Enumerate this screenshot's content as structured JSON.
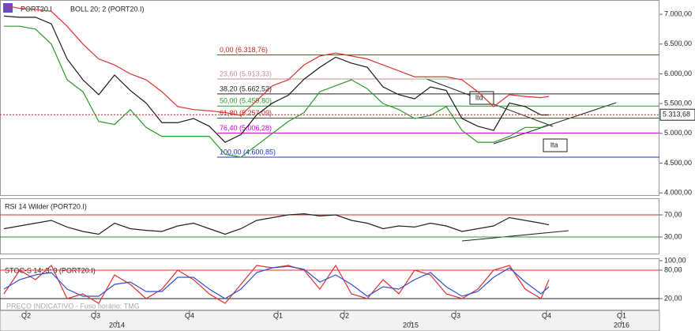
{
  "toolbar": {
    "symbol": "PORT20.I",
    "indicator": "BOLL 20; 2 (PORT20.I)"
  },
  "watermark": "PREÇO INDICATIVO - Fuso horário: TMG",
  "chart_data": [
    {
      "type": "line",
      "x": [
        1,
        5,
        9,
        13,
        17,
        21,
        25,
        29,
        33,
        37,
        41,
        45,
        49,
        53,
        57,
        61,
        65,
        69,
        73,
        77,
        81,
        85,
        89,
        93,
        97,
        101,
        105,
        109,
        113,
        117,
        121,
        125,
        129,
        133,
        137,
        139
      ],
      "xlim": [
        0,
        167
      ],
      "ylim": [
        3950,
        7240
      ],
      "yticks": [
        {
          "value": 7000,
          "label": "7.000,00"
        },
        {
          "value": 6500,
          "label": "6.500,00"
        },
        {
          "value": 6000,
          "label": "6.000,00"
        },
        {
          "value": 5500,
          "label": "5.500,00"
        },
        {
          "value": 5000,
          "label": "5.000,00"
        },
        {
          "value": 4500,
          "label": "4.500,00"
        },
        {
          "value": 4000,
          "label": "4.000,00"
        }
      ],
      "series": [
        {
          "color": "#1a1a1a",
          "values": [
            6970,
            6950,
            6950,
            6840,
            6250,
            5900,
            5650,
            5980,
            5720,
            5510,
            5180,
            5180,
            5250,
            5120,
            4850,
            4980,
            5310,
            5510,
            5640,
            5910,
            6110,
            6280,
            6180,
            6110,
            5780,
            5650,
            5580,
            5780,
            5720,
            5250,
            5120,
            5050,
            5510,
            5450,
            5310,
            5310
          ]
        },
        {
          "color": "#e03030",
          "values": [
            7150,
            7100,
            7080,
            7050,
            6800,
            6500,
            6250,
            6150,
            6000,
            5900,
            5700,
            5450,
            5400,
            5380,
            5350,
            5300,
            5550,
            5800,
            5900,
            6150,
            6300,
            6350,
            6300,
            6250,
            6150,
            6050,
            5950,
            5950,
            5950,
            5900,
            5700,
            5450,
            5650,
            5620,
            5600,
            5620
          ]
        },
        {
          "color": "#2a9a2a",
          "values": [
            6800,
            6800,
            6750,
            6500,
            5900,
            5700,
            5200,
            5150,
            5400,
            5100,
            4950,
            4950,
            4950,
            4950,
            4650,
            4600,
            4800,
            5000,
            5200,
            5350,
            5700,
            5800,
            5900,
            5750,
            5500,
            5400,
            5250,
            5300,
            5450,
            5050,
            4850,
            4850,
            4950,
            5100,
            5100,
            5150
          ]
        }
      ],
      "fibonacci": [
        {
          "label": "0,00 (6.318,76)",
          "value": 6318.76,
          "color": "#d02020"
        },
        {
          "label": "23,60 (5.913,33)",
          "value": 5913.33,
          "color": "#c09090"
        },
        {
          "label": "38,20 (5.662,52)",
          "value": 5662.52,
          "color": "#222222"
        },
        {
          "label": "50,00 (5.459,80)",
          "value": 5459.8,
          "color": "#2a9a2a"
        },
        {
          "label": "61,80 (5.257,09)",
          "value": 5257.09,
          "color": "#d02020"
        },
        {
          "label": "76,40 (5.006,28)",
          "value": 5006.28,
          "color": "#cc00cc"
        },
        {
          "label": "100,00 (4.600,85)",
          "value": 4600.85,
          "color": "#2030c0"
        }
      ],
      "last_price": {
        "value": 5313.68,
        "label": "5.313,68"
      },
      "annotations": [
        "ltd",
        "lta"
      ]
    },
    {
      "type": "line",
      "title": "RSI 14 Wilder (PORT20.I)",
      "x": [
        1,
        5,
        9,
        13,
        17,
        21,
        25,
        29,
        33,
        37,
        41,
        45,
        49,
        53,
        57,
        61,
        65,
        69,
        73,
        77,
        81,
        85,
        89,
        93,
        97,
        101,
        105,
        109,
        113,
        117,
        121,
        125,
        129,
        133,
        137,
        139
      ],
      "xlim": [
        0,
        167
      ],
      "ylim": [
        0,
        100
      ],
      "yticks": [
        {
          "value": 70,
          "label": "70,00"
        },
        {
          "value": 30,
          "label": "30,00"
        }
      ],
      "levels": [
        {
          "value": 70,
          "color": "#e03030"
        },
        {
          "value": 30,
          "color": "#2a9a2a"
        }
      ],
      "series": [
        {
          "color": "#222222",
          "values": [
            45,
            50,
            55,
            60,
            48,
            40,
            35,
            55,
            45,
            42,
            40,
            50,
            55,
            45,
            35,
            45,
            60,
            65,
            70,
            72,
            68,
            70,
            60,
            55,
            45,
            50,
            48,
            55,
            50,
            40,
            45,
            50,
            65,
            60,
            55,
            52
          ]
        }
      ]
    },
    {
      "type": "line",
      "title": "STOC-S 14; 3; 3 (PORT20.I)",
      "x": [
        1,
        5,
        9,
        13,
        17,
        21,
        25,
        29,
        33,
        37,
        41,
        45,
        49,
        53,
        57,
        61,
        65,
        69,
        73,
        77,
        81,
        85,
        89,
        93,
        97,
        101,
        105,
        109,
        113,
        117,
        121,
        125,
        129,
        133,
        137,
        139
      ],
      "xlim": [
        0,
        167
      ],
      "ylim": [
        0,
        100
      ],
      "yticks": [
        {
          "value": 100,
          "label": "100,00"
        },
        {
          "value": 80,
          "label": "80,00"
        },
        {
          "value": 20,
          "label": "20,00"
        }
      ],
      "levels": [
        {
          "value": 80,
          "color": "#e03030"
        },
        {
          "value": 20,
          "color": "#222222"
        }
      ],
      "series": [
        {
          "color": "#e03030",
          "values": [
            30,
            80,
            60,
            90,
            20,
            30,
            10,
            70,
            50,
            20,
            40,
            80,
            60,
            30,
            10,
            50,
            90,
            85,
            90,
            80,
            40,
            90,
            30,
            20,
            60,
            30,
            80,
            70,
            30,
            20,
            40,
            80,
            90,
            40,
            20,
            60
          ]
        },
        {
          "color": "#3050d0",
          "values": [
            40,
            60,
            70,
            75,
            40,
            25,
            25,
            50,
            55,
            35,
            35,
            65,
            65,
            40,
            20,
            40,
            75,
            85,
            88,
            82,
            55,
            70,
            50,
            25,
            45,
            40,
            60,
            75,
            45,
            25,
            35,
            65,
            85,
            55,
            30,
            45
          ]
        }
      ],
      "xticks": [
        {
          "value": 6.6,
          "label": "Q2"
        },
        {
          "value": 24.2,
          "label": "Q3"
        },
        {
          "value": 48,
          "label": "Q4"
        },
        {
          "value": 70.4,
          "label": "Q1"
        },
        {
          "value": 87.2,
          "label": "Q2"
        },
        {
          "value": 115.4,
          "label": "Q3"
        },
        {
          "value": 138.4,
          "label": "Q4"
        },
        {
          "value": 157.4,
          "label": "Q1"
        }
      ],
      "year_ticks": [
        {
          "value": 29.6,
          "label": "2014"
        },
        {
          "value": 104,
          "label": "2015"
        },
        {
          "value": 157.4,
          "label": "2016"
        }
      ]
    }
  ]
}
